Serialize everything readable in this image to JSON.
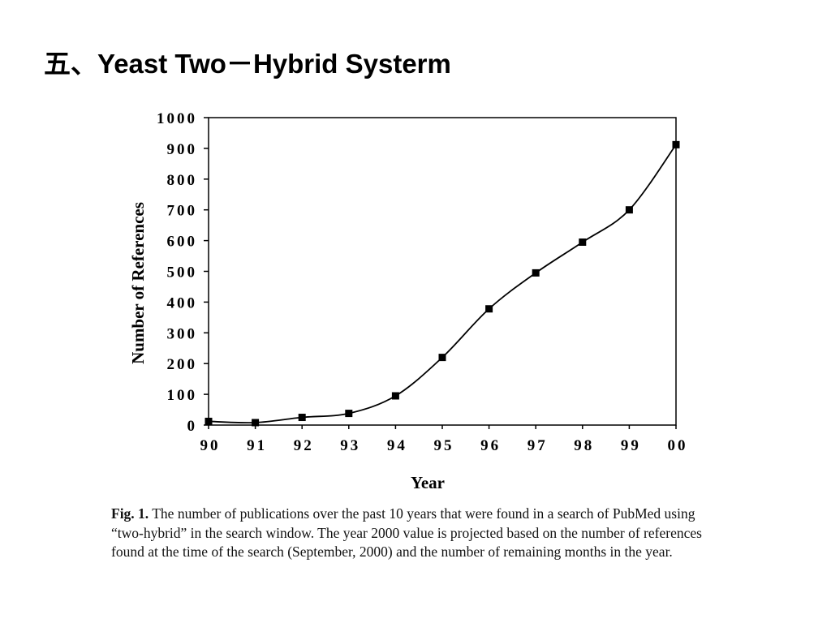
{
  "slide": {
    "title": "五、Yeast Two－Hybrid Systerm"
  },
  "chart_data": {
    "type": "line",
    "xlabel": "Year",
    "ylabel": "Number of References",
    "categories": [
      "90",
      "91",
      "92",
      "93",
      "94",
      "95",
      "96",
      "97",
      "98",
      "99",
      "00"
    ],
    "yticks": [
      "0",
      "100",
      "200",
      "300",
      "400",
      "500",
      "600",
      "700",
      "800",
      "900",
      "1000"
    ],
    "ylim": [
      0,
      1000
    ],
    "series": [
      {
        "values": [
          12,
          8,
          25,
          38,
          95,
          220,
          378,
          495,
          595,
          700,
          912
        ]
      }
    ],
    "marker": "square",
    "line_color": "#000000",
    "grid": false
  },
  "caption": {
    "label": "Fig. 1.",
    "text": " The number of publications over the past 10 years that were found in a search of PubMed using “two-hybrid” in the search window.  The year 2000 value is projected based on the number of references found at the time of the search (September, 2000) and the number of remaining months in the year."
  }
}
